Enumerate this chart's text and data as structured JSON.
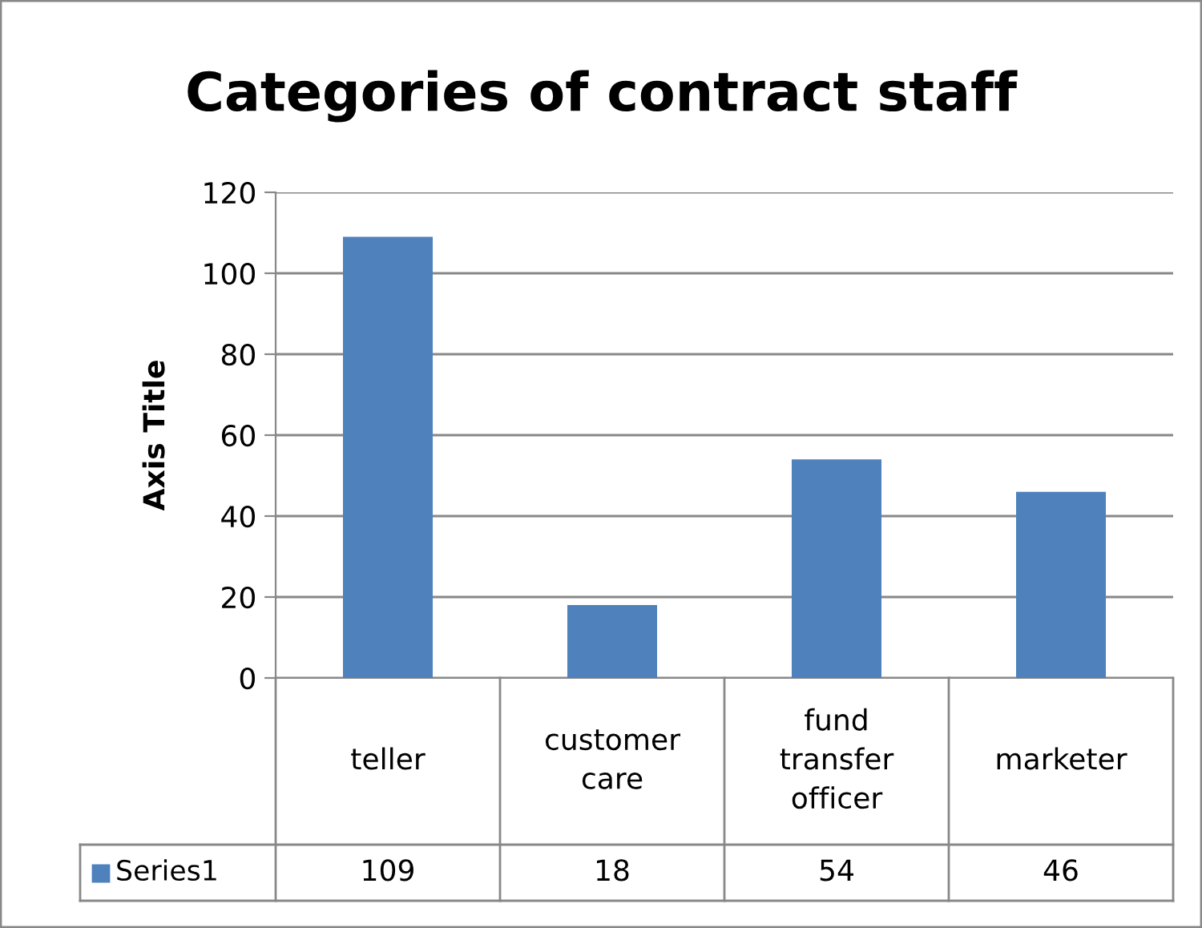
{
  "chart_data": {
    "type": "bar",
    "title": "Categories of contract staff",
    "ylabel": "Axis Title",
    "categories": [
      "teller",
      "customer care",
      "fund transfer officer",
      "marketer"
    ],
    "series": [
      {
        "name": "Series1",
        "color": "#4f81bd",
        "values": [
          109,
          18,
          54,
          46
        ]
      }
    ],
    "ylim": [
      0,
      120
    ],
    "yticks": [
      0,
      20,
      40,
      60,
      80,
      100,
      120
    ],
    "grid": "y",
    "data_labels": true,
    "legend": "bottom"
  }
}
